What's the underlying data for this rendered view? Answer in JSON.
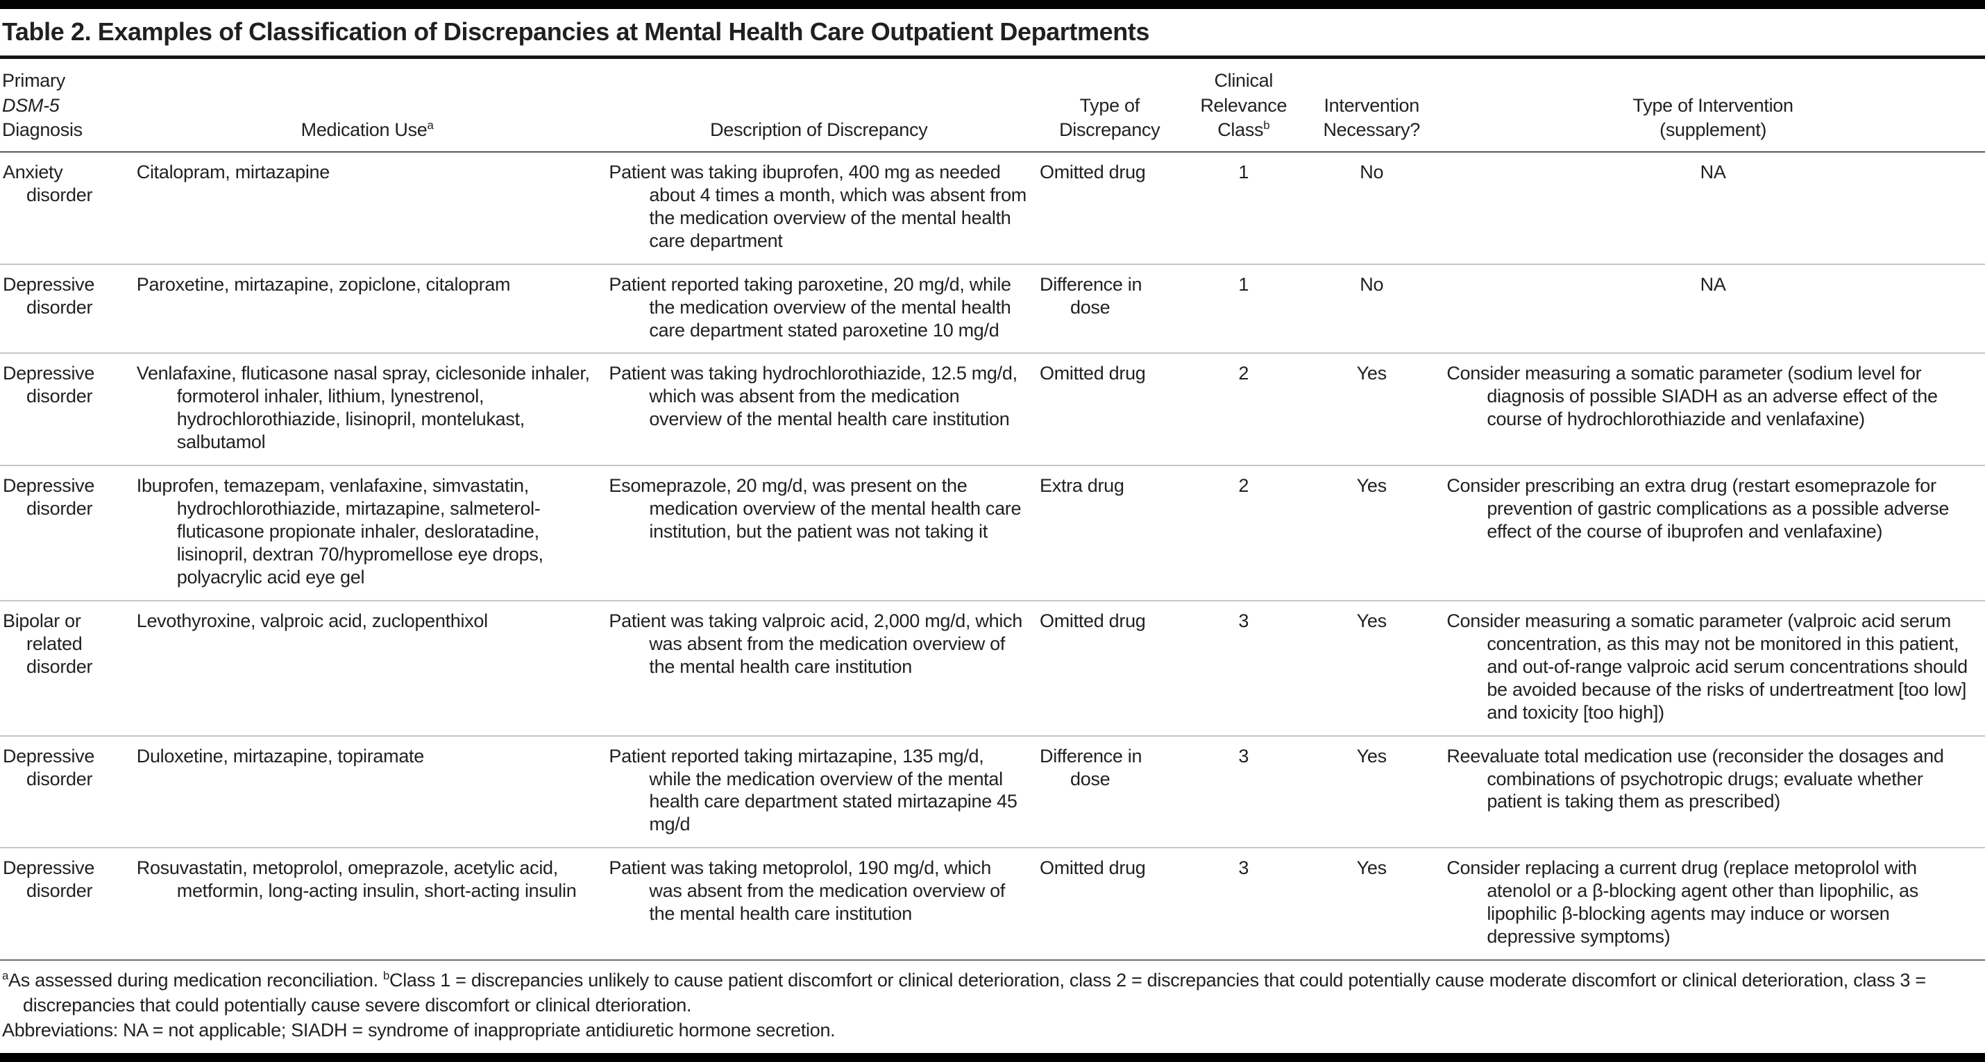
{
  "table": {
    "title": "Table 2. Examples of Classification of Discrepancies at Mental Health Care Outpatient Departments",
    "header": {
      "c1_line1": "Primary",
      "c1_line2": "DSM-5",
      "c1_line3": "Diagnosis",
      "c2": "Medication Use",
      "c2_sup": "a",
      "c3": "Description of Discrepancy",
      "c4": "Type of\nDiscrepancy",
      "c5_line1": "Clinical",
      "c5_line2": "Relevance",
      "c5_line3": "Class",
      "c5_sup": "b",
      "c6": "Intervention\nNecessary?",
      "c7": "Type of Intervention\n(supplement)"
    },
    "rows": [
      {
        "diagnosis": "Anxiety disorder",
        "medication": "Citalopram, mirtazapine",
        "description": "Patient was taking ibuprofen, 400 mg as needed about 4 times a month, which was absent from the medication overview of the mental health care department",
        "type": "Omitted drug",
        "class": "1",
        "necessary": "No",
        "intervention": "NA"
      },
      {
        "diagnosis": "Depressive disorder",
        "medication": "Paroxetine, mirtazapine, zopiclone, citalopram",
        "description": "Patient reported taking paroxetine, 20 mg/d, while the medication overview of the mental health care department stated paroxetine 10 mg/d",
        "type": "Difference in dose",
        "class": "1",
        "necessary": "No",
        "intervention": "NA"
      },
      {
        "diagnosis": "Depressive disorder",
        "medication": "Venlafaxine, fluticasone nasal spray, ciclesonide inhaler, formoterol inhaler, lithium, lynestrenol, hydrochlorothiazide, lisinopril, montelukast, salbutamol",
        "description": "Patient was taking hydrochlorothiazide, 12.5 mg/d, which was absent from the medication overview of the mental health care institution",
        "type": "Omitted drug",
        "class": "2",
        "necessary": "Yes",
        "intervention": "Consider measuring a somatic parameter (sodium level for diagnosis of possible SIADH as an adverse effect of the course of hydrochlorothiazide and venlafaxine)"
      },
      {
        "diagnosis": "Depressive disorder",
        "medication": "Ibuprofen, temazepam, venlafaxine, simvastatin, hydrochlorothiazide, mirtazapine, salmeterol-fluticasone propionate inhaler, desloratadine, lisinopril, dextran 70/hypromellose eye drops, polyacrylic acid eye gel",
        "description": "Esomeprazole, 20 mg/d, was present on the medication overview of the mental health care institution, but the patient was not taking it",
        "type": "Extra drug",
        "class": "2",
        "necessary": "Yes",
        "intervention": "Consider prescribing an extra drug (restart esomeprazole for prevention of gastric complications as a possible adverse effect of the course of ibuprofen and venlafaxine)"
      },
      {
        "diagnosis": "Bipolar or related disorder",
        "medication": "Levothyroxine, valproic acid, zuclopenthixol",
        "description": "Patient was taking valproic acid, 2,000 mg/d, which was absent from the medication overview of the mental health care institution",
        "type": "Omitted drug",
        "class": "3",
        "necessary": "Yes",
        "intervention": "Consider measuring a somatic parameter (valproic acid serum concentration, as this may not be monitored in this patient, and out-of-range valproic acid serum concentrations should be avoided because of the risks of undertreatment [too low] and toxicity [too high])"
      },
      {
        "diagnosis": "Depressive disorder",
        "medication": "Duloxetine, mirtazapine, topiramate",
        "description": "Patient reported taking mirtazapine, 135 mg/d, while the medication overview of the mental health care department stated mirtazapine 45 mg/d",
        "type": "Difference in dose",
        "class": "3",
        "necessary": "Yes",
        "intervention": "Reevaluate total medication use (reconsider the dosages and combinations of psychotropic drugs; evaluate whether patient is taking them as prescribed)"
      },
      {
        "diagnosis": "Depressive disorder",
        "medication": "Rosuvastatin, metoprolol, omeprazole, acetylic acid, metformin, long-acting insulin, short-acting insulin",
        "description": "Patient was taking metoprolol, 190 mg/d, which was absent from the medication overview of the mental health care institution",
        "type": "Omitted drug",
        "class": "3",
        "necessary": "Yes",
        "intervention": "Consider replacing a current drug (replace metoprolol with atenolol or a β-blocking agent other than lipophilic, as lipophilic β-blocking agents may induce or worsen depressive symptoms)"
      }
    ],
    "footnotes": {
      "sup_a": "a",
      "a_text": "As assessed during medication reconciliation. ",
      "sup_b": "b",
      "b_text": "Class 1 = discrepancies unlikely to cause patient discomfort or clinical deterioration, class 2 = discrepancies that could potentially cause moderate discomfort or clinical deterioration, class 3 = discrepancies that could potentially cause severe discomfort or clinical dterioration.",
      "abbreviations": "Abbreviations: NA = not applicable; SIADH = syndrome of inappropriate antidiuretic hormone secretion."
    },
    "colors": {
      "text": "#231f20",
      "rule_heavy": "#000000",
      "rule_medium": "#5a5a5a",
      "rule_light": "#c6c6c6",
      "background": "#ffffff"
    }
  }
}
